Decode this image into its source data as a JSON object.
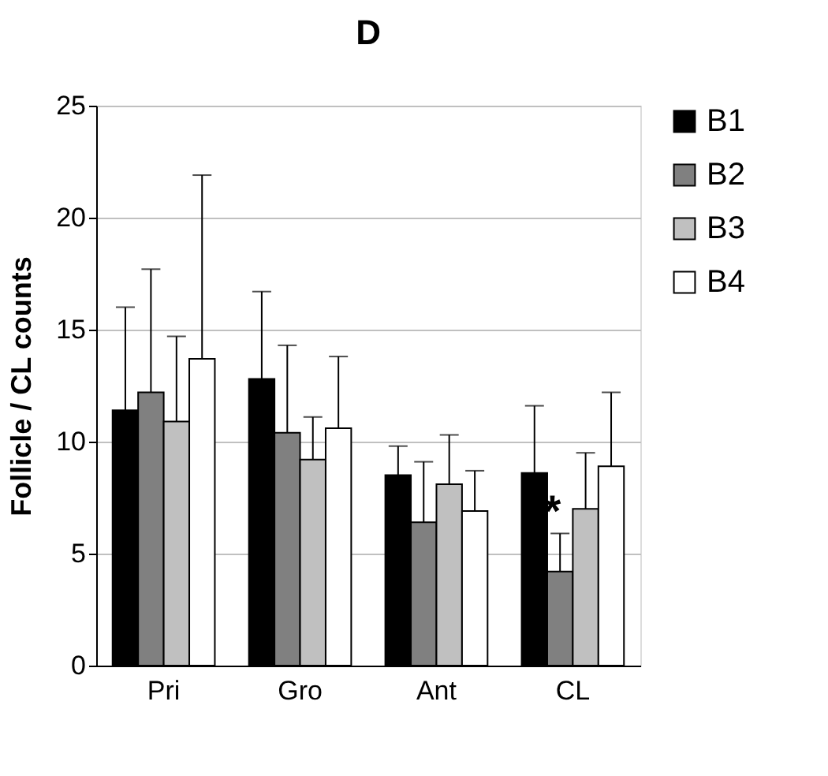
{
  "chart_data": {
    "type": "bar",
    "title": "D",
    "ylabel": "Follicle / CL counts",
    "categories": [
      "Pri",
      "Gro",
      "Ant",
      "CL"
    ],
    "series": [
      {
        "name": "B1",
        "color": "#000000",
        "values": [
          11.4,
          12.8,
          8.5,
          8.6
        ],
        "errors": [
          [
            11.4,
            16.0
          ],
          [
            12.8,
            16.7
          ],
          [
            8.5,
            9.8
          ],
          [
            8.6,
            11.6
          ]
        ]
      },
      {
        "name": "B2",
        "color": "#808080",
        "values": [
          12.2,
          10.4,
          6.4,
          4.2
        ],
        "errors": [
          [
            12.2,
            17.7
          ],
          [
            10.4,
            14.3
          ],
          [
            6.4,
            9.1
          ],
          [
            4.2,
            5.9
          ]
        ]
      },
      {
        "name": "B3",
        "color": "#c0c0c0",
        "values": [
          10.9,
          9.2,
          8.1,
          7.0
        ],
        "errors": [
          [
            10.9,
            14.7
          ],
          [
            9.2,
            11.1
          ],
          [
            8.1,
            10.3
          ],
          [
            7.0,
            9.5
          ]
        ]
      },
      {
        "name": "B4",
        "color": "#ffffff",
        "values": [
          13.7,
          10.6,
          6.9,
          8.9
        ],
        "errors": [
          [
            13.7,
            21.9
          ],
          [
            10.6,
            13.8
          ],
          [
            6.9,
            8.7
          ],
          [
            8.9,
            12.2
          ]
        ]
      }
    ],
    "ylim": [
      0,
      25
    ],
    "yticks": [
      0,
      5,
      10,
      15,
      20,
      25
    ],
    "grid": "y",
    "legend": "right",
    "annotations": [
      {
        "text": "*",
        "x": "CL",
        "y": 6.8
      }
    ]
  }
}
